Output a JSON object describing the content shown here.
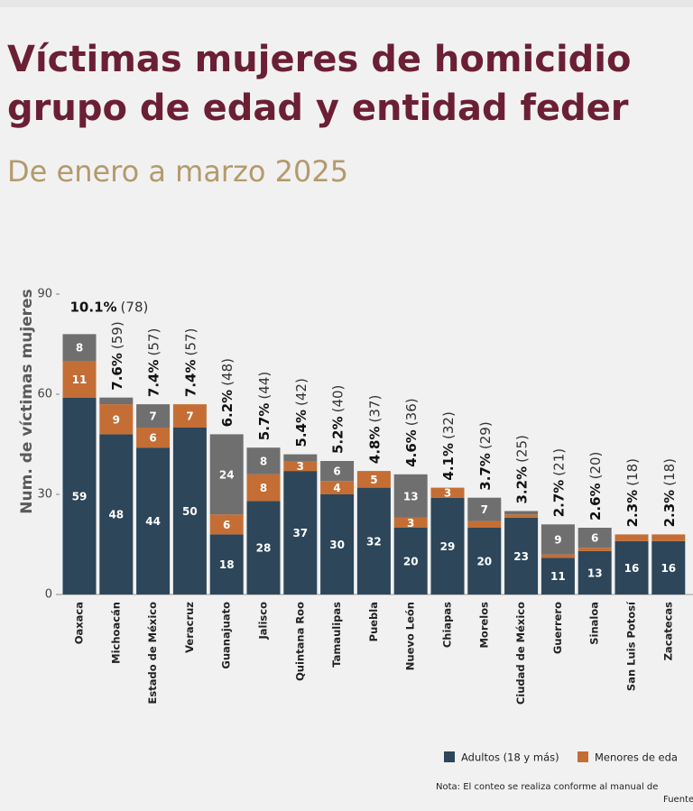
{
  "chart_data": {
    "type": "stacked_bar",
    "title": [
      "Víctimas mujeres de homicidio",
      "grupo de edad y entidad feder"
    ],
    "subtitle": "De enero a marzo 2025",
    "y_label": "Num. de víctimas mujeres",
    "categories": [
      "Oaxaca",
      "Michoacán",
      "Estado de México",
      "Veracruz",
      "Guanajuato",
      "Jalisco",
      "Quintana Roo",
      "Tamaulipas",
      "Puebla",
      "Nuevo León",
      "Chiapas",
      "Morelos",
      "Ciudad de México",
      "Guerrero",
      "Sinaloa",
      "San Luis Potosí",
      "Zacatecas"
    ],
    "series": [
      {
        "name": "Adultos (18 y más)",
        "color": "#2d4659",
        "values": [
          59,
          48,
          44,
          50,
          18,
          28,
          37,
          30,
          32,
          20,
          29,
          20,
          23,
          11,
          13,
          16,
          16
        ]
      },
      {
        "name": "Menores de eda",
        "color": "#c46e35",
        "values": [
          11,
          9,
          6,
          7,
          6,
          8,
          3,
          4,
          5,
          3,
          3,
          2,
          1,
          1,
          1,
          2,
          2
        ]
      },
      {
        "color": "#6f6f6f",
        "values": [
          8,
          2,
          7,
          0,
          24,
          8,
          2,
          6,
          0,
          13,
          0,
          7,
          1,
          9,
          6,
          0,
          0
        ]
      }
    ],
    "annotations": [
      {
        "share": "10.1%",
        "total": "(78)"
      },
      {
        "share": "7.6%",
        "total": "(59)"
      },
      {
        "share": "7.4%",
        "total": "(57)"
      },
      {
        "share": "7.4%",
        "total": "(57)"
      },
      {
        "share": "6.2%",
        "total": "(48)"
      },
      {
        "share": "5.7%",
        "total": "(44)"
      },
      {
        "share": "5.4%",
        "total": "(42)"
      },
      {
        "share": "5.2%",
        "total": "(40)"
      },
      {
        "share": "4.8%",
        "total": "(37)"
      },
      {
        "share": "4.6%",
        "total": "(36)"
      },
      {
        "share": "4.1%",
        "total": "(32)"
      },
      {
        "share": "3.7%",
        "total": "(29)"
      },
      {
        "share": "3.2%",
        "total": "(25)"
      },
      {
        "share": "2.7%",
        "total": "(21)"
      },
      {
        "share": "2.6%",
        "total": "(20)"
      },
      {
        "share": "2.3%",
        "total": "(18)"
      },
      {
        "share": "2.3%",
        "total": "(18)"
      }
    ],
    "ylim": [
      0,
      100
    ],
    "yticks": [
      0,
      30,
      60,
      90
    ],
    "notes": [
      "Nota: El conteo se realiza conforme al manual de",
      "Fuente"
    ]
  }
}
